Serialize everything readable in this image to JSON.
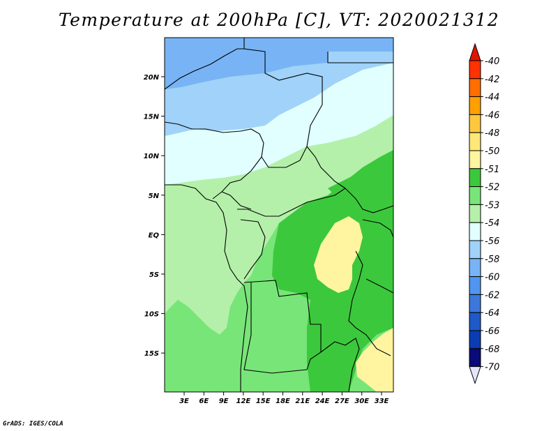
{
  "title": "Temperature at 200hPa [C], VT: 2020021312",
  "credit": "GrADS: IGES/COLA",
  "map": {
    "lat_labels": [
      "20N",
      "15N",
      "10N",
      "5N",
      "EQ",
      "5S",
      "10S",
      "15S"
    ],
    "lon_labels": [
      "3E",
      "6E",
      "9E",
      "12E",
      "15E",
      "18E",
      "21E",
      "24E",
      "27E",
      "30E",
      "33E"
    ],
    "fields": [
      {
        "name": "temp-58-band",
        "color": "#78b4f5"
      },
      {
        "name": "temp-56-band",
        "color": "#a0d2fa"
      },
      {
        "name": "temp-54-band",
        "color": "#e1ffff"
      },
      {
        "name": "temp-53-band",
        "color": "#b4f0aa"
      },
      {
        "name": "temp-52-band",
        "color": "#78e578"
      },
      {
        "name": "temp-51-band",
        "color": "#3cc83c"
      },
      {
        "name": "temp-50-band",
        "color": "#fff5a0"
      }
    ]
  },
  "colorbar": {
    "labels": [
      "-40",
      "-42",
      "-44",
      "-46",
      "-48",
      "-50",
      "-51",
      "-52",
      "-53",
      "-54",
      "-56",
      "-58",
      "-60",
      "-62",
      "-64",
      "-66",
      "-68",
      "-70"
    ],
    "colors": [
      "#e11400",
      "#ff3200",
      "#ff6e00",
      "#ffa000",
      "#ffc83c",
      "#ffe878",
      "#fff5a0",
      "#3cc83c",
      "#78e578",
      "#b4f0aa",
      "#e1ffff",
      "#a0d2fa",
      "#78b4f5",
      "#5096f0",
      "#3c78dc",
      "#1e5ac8",
      "#0a3cb4",
      "#0a0a78"
    ]
  }
}
